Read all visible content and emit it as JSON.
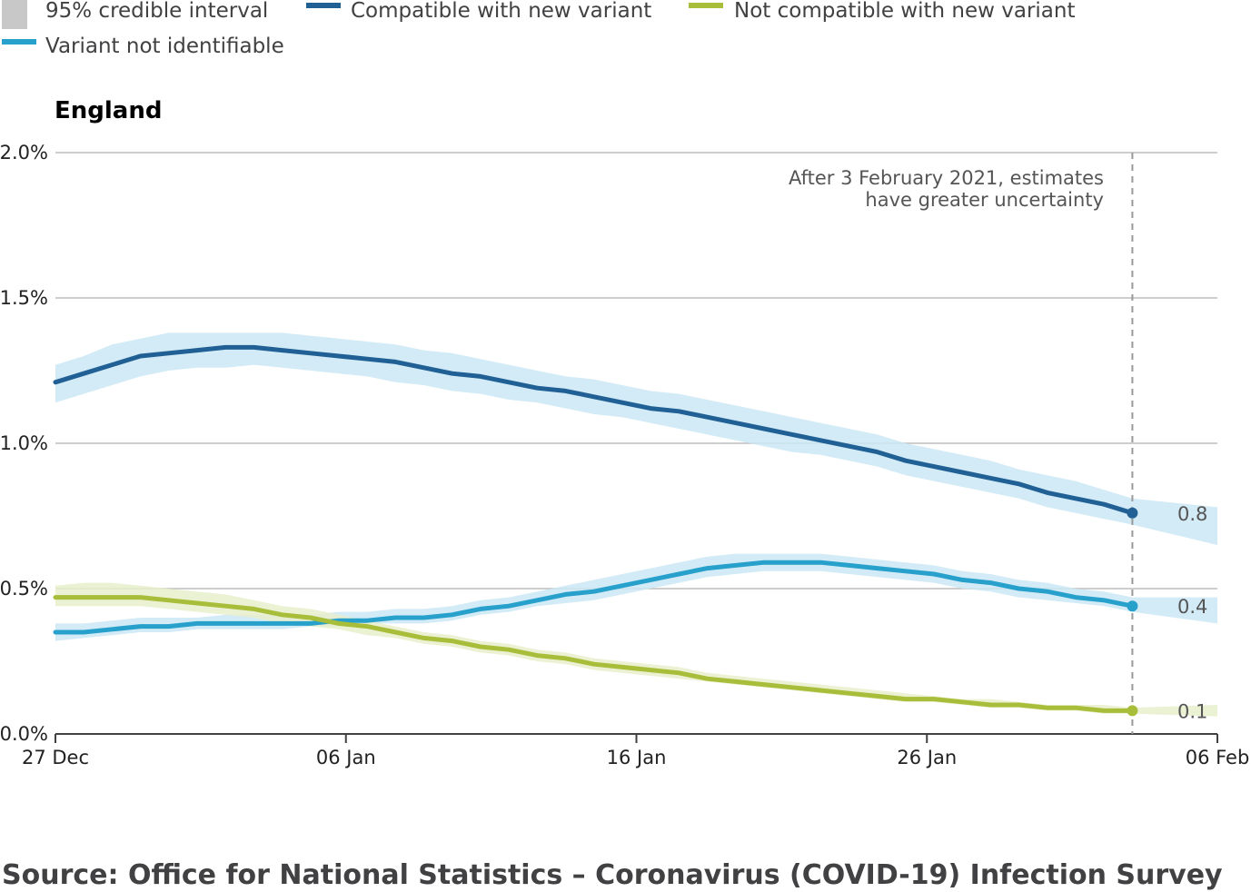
{
  "chart_data": {
    "type": "line",
    "title": "England",
    "xlabel": "",
    "ylabel": "",
    "x_ticks": [
      "27 Dec",
      "06 Jan",
      "16 Jan",
      "26 Jan",
      "06 Feb"
    ],
    "x_range": [
      "2020-12-27",
      "2021-02-06"
    ],
    "y_ticks": [
      "0.0%",
      "0.5%",
      "1.0%",
      "1.5%",
      "2.0%"
    ],
    "ylim": [
      0,
      2
    ],
    "grid": true,
    "legend_position": "top",
    "legend": [
      {
        "label": "95% credible interval",
        "color": "#c8c8c8",
        "kind": "box"
      },
      {
        "label": "Compatible with new variant",
        "color": "#206095",
        "kind": "line"
      },
      {
        "label": "Not compatible with new variant",
        "color": "#a8bd3a",
        "kind": "line"
      },
      {
        "label": "Variant not identifiable",
        "color": "#27a0cc",
        "kind": "line"
      }
    ],
    "annotation": {
      "date": "2021-02-03",
      "lines": [
        "After 3 February 2021, estimates",
        "have greater uncertainty"
      ]
    },
    "x": [
      "2020-12-27",
      "2020-12-28",
      "2020-12-29",
      "2020-12-30",
      "2020-12-31",
      "2021-01-01",
      "2021-01-02",
      "2021-01-03",
      "2021-01-04",
      "2021-01-05",
      "2021-01-06",
      "2021-01-07",
      "2021-01-08",
      "2021-01-09",
      "2021-01-10",
      "2021-01-11",
      "2021-01-12",
      "2021-01-13",
      "2021-01-14",
      "2021-01-15",
      "2021-01-16",
      "2021-01-17",
      "2021-01-18",
      "2021-01-19",
      "2021-01-20",
      "2021-01-21",
      "2021-01-22",
      "2021-01-23",
      "2021-01-24",
      "2021-01-25",
      "2021-01-26",
      "2021-01-27",
      "2021-01-28",
      "2021-01-29",
      "2021-01-30",
      "2021-01-31",
      "2021-02-01",
      "2021-02-02",
      "2021-02-03"
    ],
    "series": [
      {
        "name": "Compatible with new variant",
        "color": "#206095",
        "band_color": "#cbe8f5",
        "end_label": "0.8",
        "values": [
          1.21,
          1.24,
          1.27,
          1.3,
          1.31,
          1.32,
          1.33,
          1.33,
          1.32,
          1.31,
          1.3,
          1.29,
          1.28,
          1.26,
          1.24,
          1.23,
          1.21,
          1.19,
          1.18,
          1.16,
          1.14,
          1.12,
          1.11,
          1.09,
          1.07,
          1.05,
          1.03,
          1.01,
          0.99,
          0.97,
          0.94,
          0.92,
          0.9,
          0.88,
          0.86,
          0.83,
          0.81,
          0.79,
          0.76
        ],
        "lower": [
          1.14,
          1.17,
          1.2,
          1.23,
          1.25,
          1.26,
          1.26,
          1.27,
          1.26,
          1.25,
          1.24,
          1.23,
          1.21,
          1.2,
          1.18,
          1.17,
          1.15,
          1.14,
          1.12,
          1.1,
          1.09,
          1.07,
          1.05,
          1.03,
          1.01,
          0.99,
          0.97,
          0.96,
          0.94,
          0.92,
          0.89,
          0.87,
          0.85,
          0.83,
          0.81,
          0.78,
          0.76,
          0.74,
          0.72
        ],
        "upper": [
          1.27,
          1.3,
          1.34,
          1.36,
          1.38,
          1.38,
          1.38,
          1.38,
          1.38,
          1.37,
          1.36,
          1.35,
          1.34,
          1.32,
          1.31,
          1.29,
          1.27,
          1.25,
          1.23,
          1.22,
          1.2,
          1.18,
          1.17,
          1.15,
          1.13,
          1.11,
          1.09,
          1.07,
          1.05,
          1.03,
          1.0,
          0.98,
          0.96,
          0.94,
          0.91,
          0.89,
          0.87,
          0.84,
          0.81
        ],
        "extension": {
          "x": "2021-02-06",
          "lower": 0.65,
          "upper": 0.78
        }
      },
      {
        "name": "Variant not identifiable",
        "color": "#27a0cc",
        "band_color": "#cbe8f5",
        "end_label": "0.4",
        "values": [
          0.35,
          0.35,
          0.36,
          0.37,
          0.37,
          0.38,
          0.38,
          0.38,
          0.38,
          0.38,
          0.39,
          0.39,
          0.4,
          0.4,
          0.41,
          0.43,
          0.44,
          0.46,
          0.48,
          0.49,
          0.51,
          0.53,
          0.55,
          0.57,
          0.58,
          0.59,
          0.59,
          0.59,
          0.58,
          0.57,
          0.56,
          0.55,
          0.53,
          0.52,
          0.5,
          0.49,
          0.47,
          0.46,
          0.44
        ],
        "lower": [
          0.32,
          0.33,
          0.34,
          0.35,
          0.35,
          0.36,
          0.36,
          0.36,
          0.36,
          0.37,
          0.37,
          0.38,
          0.38,
          0.38,
          0.39,
          0.41,
          0.42,
          0.44,
          0.45,
          0.46,
          0.48,
          0.5,
          0.52,
          0.54,
          0.55,
          0.56,
          0.56,
          0.56,
          0.55,
          0.54,
          0.53,
          0.52,
          0.5,
          0.49,
          0.47,
          0.46,
          0.45,
          0.44,
          0.42
        ],
        "upper": [
          0.38,
          0.38,
          0.39,
          0.4,
          0.4,
          0.4,
          0.41,
          0.41,
          0.41,
          0.41,
          0.42,
          0.42,
          0.43,
          0.43,
          0.44,
          0.46,
          0.47,
          0.49,
          0.51,
          0.53,
          0.55,
          0.57,
          0.59,
          0.61,
          0.62,
          0.62,
          0.62,
          0.62,
          0.61,
          0.6,
          0.59,
          0.58,
          0.56,
          0.55,
          0.53,
          0.52,
          0.5,
          0.49,
          0.47
        ],
        "extension": {
          "x": "2021-02-06",
          "lower": 0.38,
          "upper": 0.47
        }
      },
      {
        "name": "Not compatible with new variant",
        "color": "#a8bd3a",
        "band_color": "#e8eecb",
        "end_label": "0.1",
        "values": [
          0.47,
          0.47,
          0.47,
          0.47,
          0.46,
          0.45,
          0.44,
          0.43,
          0.41,
          0.4,
          0.38,
          0.37,
          0.35,
          0.33,
          0.32,
          0.3,
          0.29,
          0.27,
          0.26,
          0.24,
          0.23,
          0.22,
          0.21,
          0.19,
          0.18,
          0.17,
          0.16,
          0.15,
          0.14,
          0.13,
          0.12,
          0.12,
          0.11,
          0.1,
          0.1,
          0.09,
          0.09,
          0.08,
          0.08
        ],
        "lower": [
          0.44,
          0.44,
          0.44,
          0.44,
          0.43,
          0.42,
          0.41,
          0.4,
          0.38,
          0.37,
          0.36,
          0.34,
          0.33,
          0.31,
          0.3,
          0.28,
          0.27,
          0.25,
          0.24,
          0.22,
          0.21,
          0.2,
          0.19,
          0.18,
          0.17,
          0.16,
          0.15,
          0.14,
          0.13,
          0.12,
          0.11,
          0.11,
          0.1,
          0.09,
          0.09,
          0.08,
          0.08,
          0.07,
          0.07
        ],
        "upper": [
          0.51,
          0.52,
          0.52,
          0.51,
          0.5,
          0.49,
          0.48,
          0.46,
          0.44,
          0.43,
          0.41,
          0.39,
          0.37,
          0.35,
          0.34,
          0.32,
          0.31,
          0.29,
          0.28,
          0.26,
          0.25,
          0.24,
          0.23,
          0.21,
          0.2,
          0.19,
          0.18,
          0.17,
          0.16,
          0.15,
          0.14,
          0.13,
          0.12,
          0.12,
          0.11,
          0.1,
          0.1,
          0.1,
          0.09
        ],
        "extension": {
          "x": "2021-02-06",
          "lower": 0.06,
          "upper": 0.1
        }
      }
    ],
    "source": "Source: Office for National Statistics – Coronavirus (COVID-19) Infection Survey"
  }
}
